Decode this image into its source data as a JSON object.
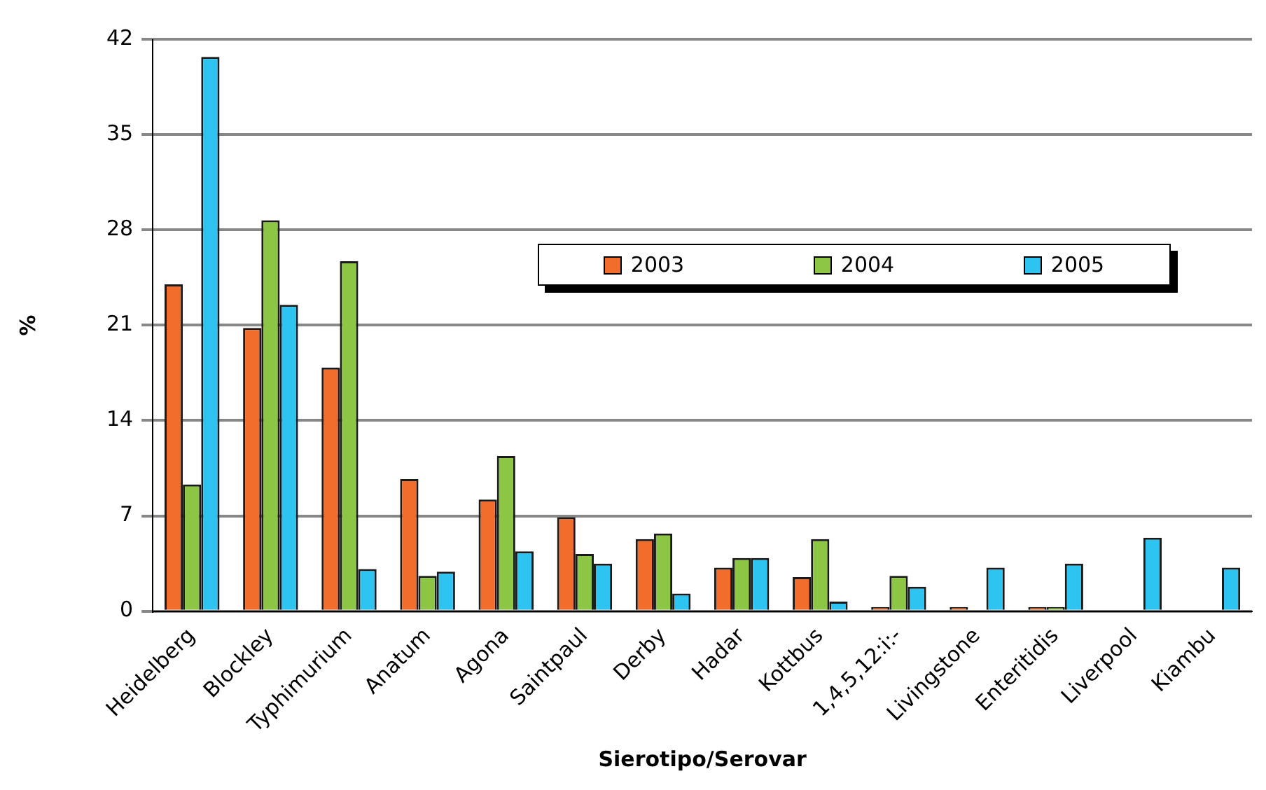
{
  "chart_data": {
    "type": "bar",
    "xlabel": "Sierotipo/Serovar",
    "ylabel": "%",
    "categories": [
      "Heidelberg",
      "Blockley",
      "Typhimurium",
      "Anatum",
      "Agona",
      "Saintpaul",
      "Derby",
      "Hadar",
      "Kottbus",
      "1,4,5,12:i:-",
      "Livingstone",
      "Enteritidis",
      "Liverpool",
      "Kiambu"
    ],
    "series": [
      {
        "name": "2003",
        "color": "#f26c2b",
        "values": [
          24.0,
          20.8,
          17.9,
          9.7,
          8.2,
          6.9,
          5.3,
          3.2,
          2.5,
          0.3,
          0.3,
          0.3,
          null,
          null
        ]
      },
      {
        "name": "2004",
        "color": "#8dc644",
        "values": [
          9.3,
          28.7,
          25.7,
          2.6,
          11.4,
          4.2,
          5.7,
          3.9,
          5.3,
          2.6,
          null,
          0.3,
          null,
          null
        ]
      },
      {
        "name": "2005",
        "color": "#2ec4f2",
        "values": [
          40.7,
          22.5,
          3.1,
          2.9,
          4.4,
          3.5,
          1.3,
          3.9,
          0.7,
          1.8,
          3.2,
          3.5,
          5.4,
          3.2
        ]
      }
    ],
    "ylim": [
      0,
      42
    ],
    "yticks": [
      0,
      7,
      14,
      21,
      28,
      35,
      42
    ],
    "grid": "y",
    "legend": "top right"
  }
}
